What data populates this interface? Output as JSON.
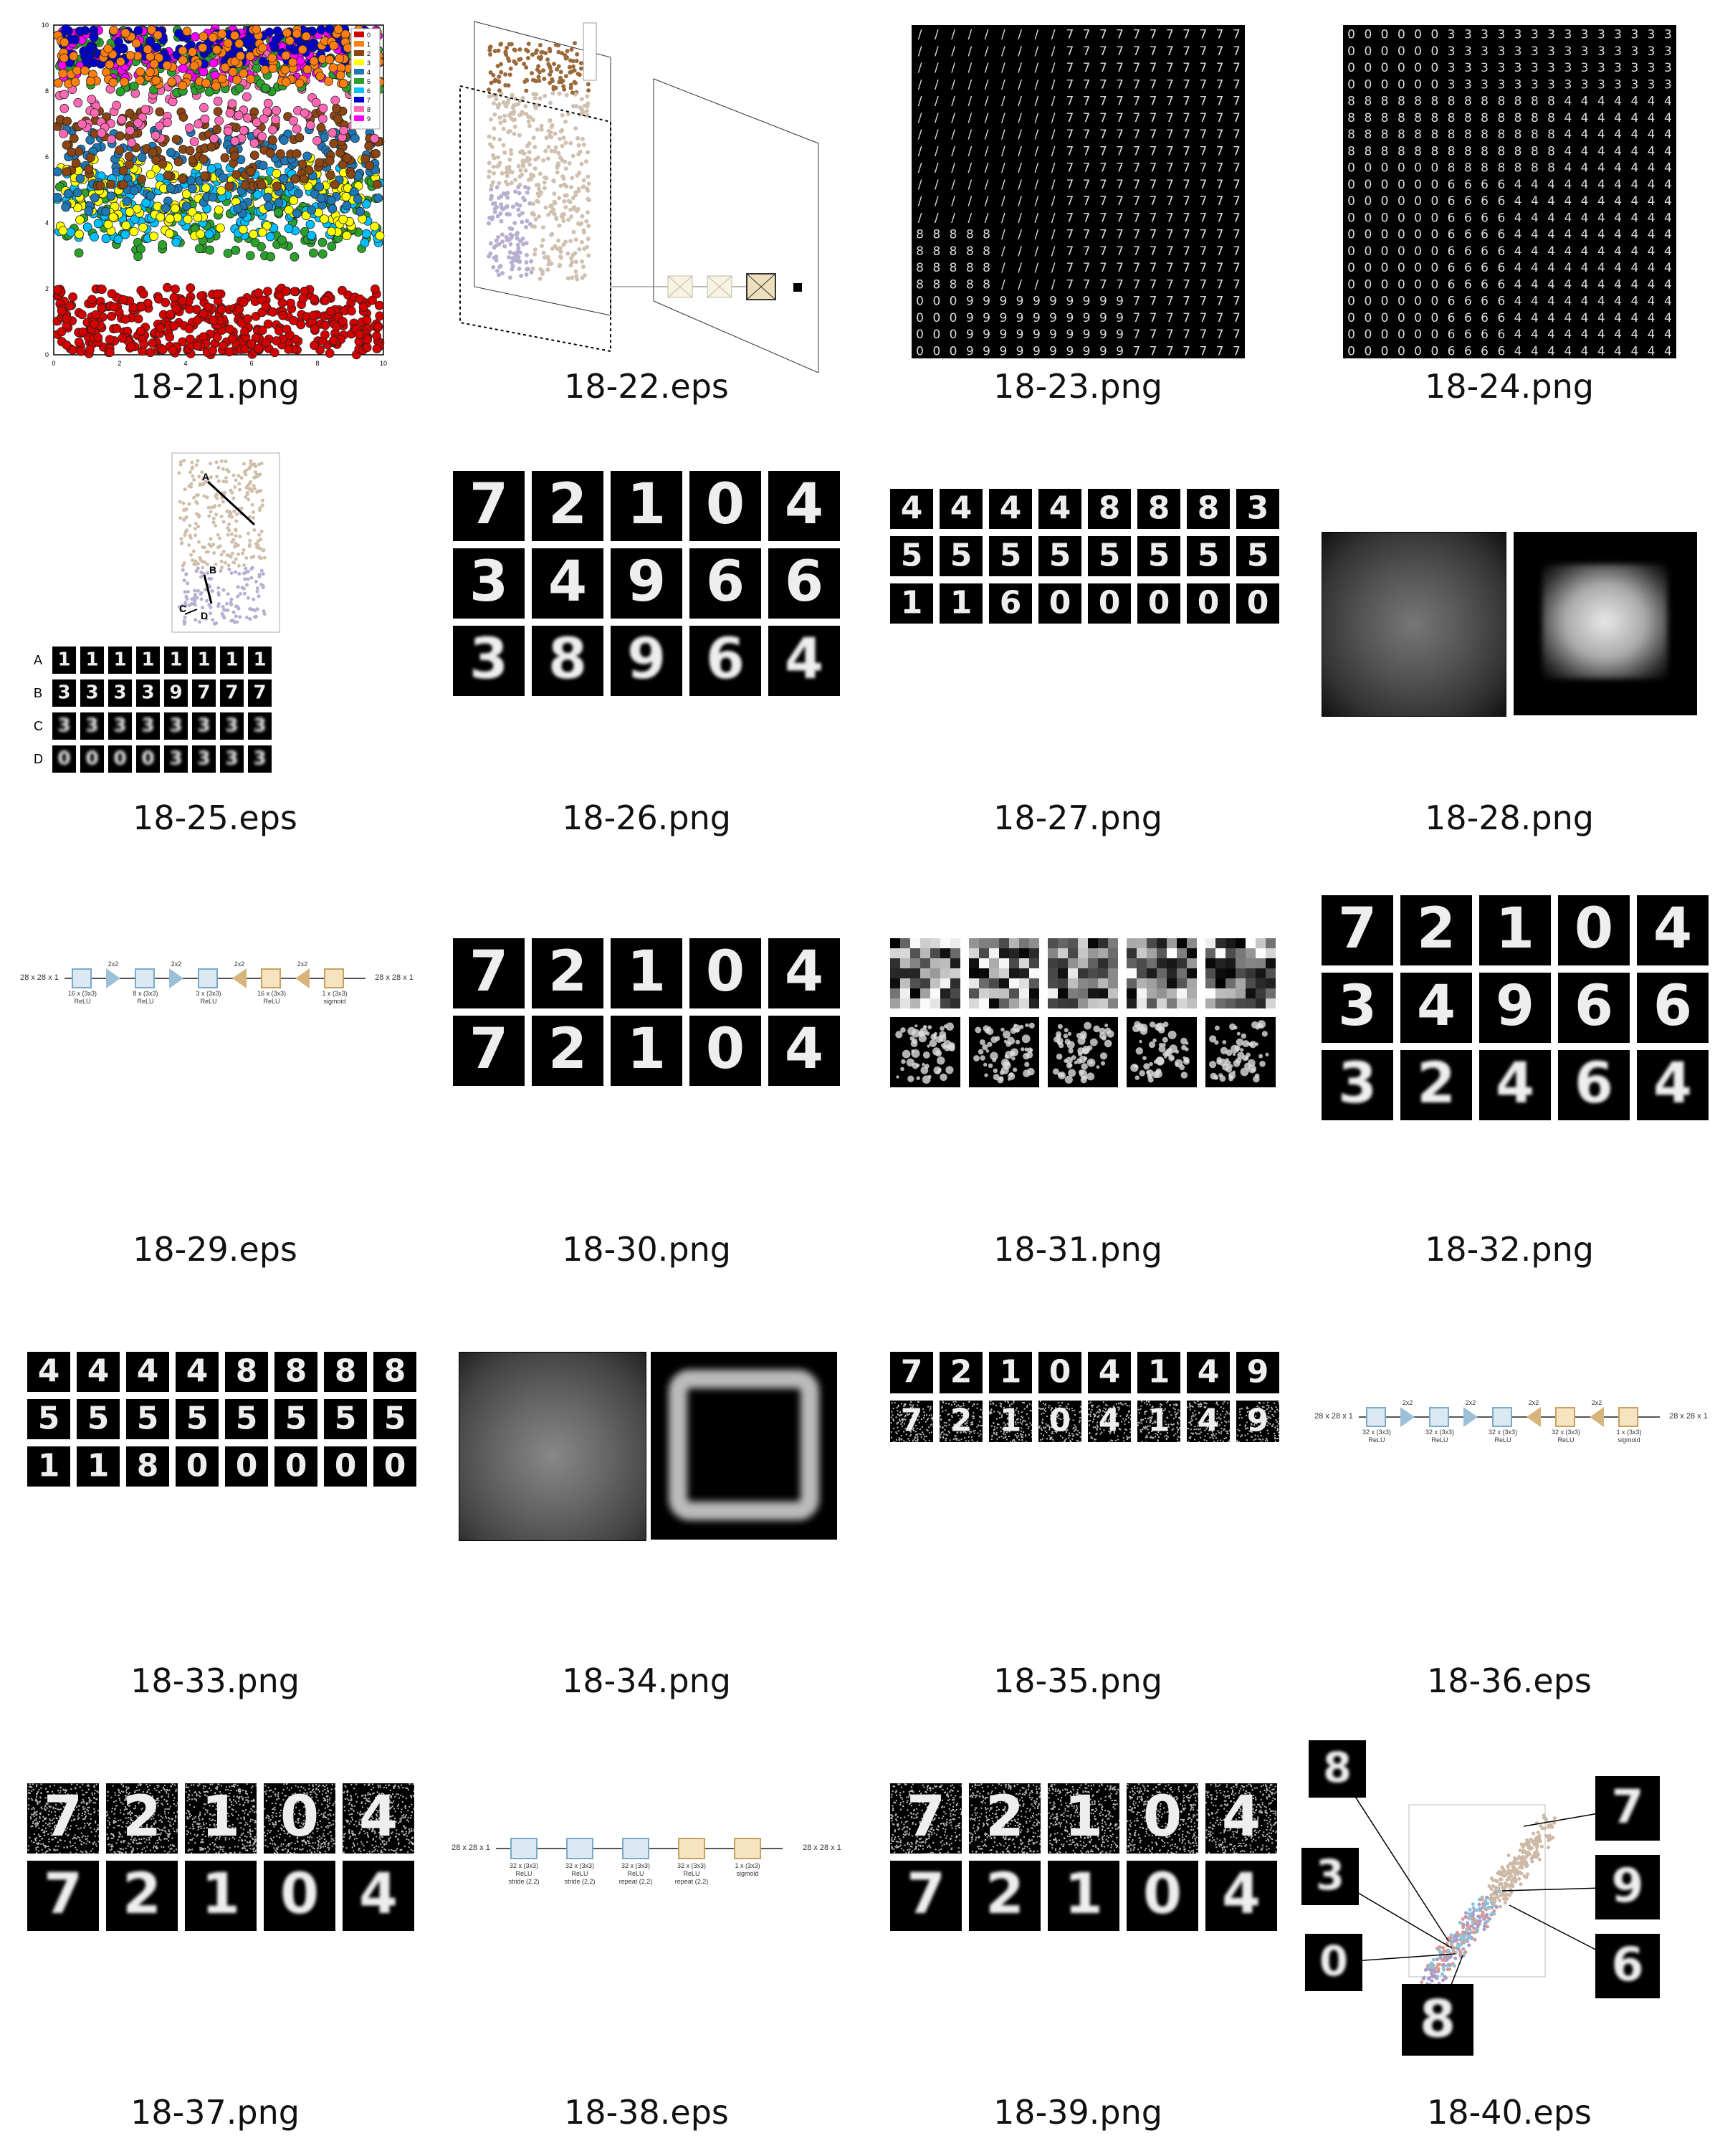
{
  "gallery": {
    "items": [
      {
        "label": "18-21.png"
      },
      {
        "label": "18-22.eps"
      },
      {
        "label": "18-23.png"
      },
      {
        "label": "18-24.png"
      },
      {
        "label": "18-25.eps"
      },
      {
        "label": "18-26.png"
      },
      {
        "label": "18-27.png"
      },
      {
        "label": "18-28.png"
      },
      {
        "label": "18-29.eps"
      },
      {
        "label": "18-30.png"
      },
      {
        "label": "18-31.png"
      },
      {
        "label": "18-32.png"
      },
      {
        "label": "18-33.png"
      },
      {
        "label": "18-34.png"
      },
      {
        "label": "18-35.png"
      },
      {
        "label": "18-36.eps"
      },
      {
        "label": "18-37.png"
      },
      {
        "label": "18-38.eps"
      },
      {
        "label": "18-39.png"
      },
      {
        "label": "18-40.eps"
      }
    ]
  },
  "fig21": {
    "legend": [
      "0",
      "1",
      "2",
      "3",
      "4",
      "5",
      "6",
      "7",
      "8",
      "9"
    ],
    "colors": [
      "#d40000",
      "#ff7f0e",
      "#8b4513",
      "#ffff00",
      "#1f77b4",
      "#2ca02c",
      "#00bfff",
      "#0000cc",
      "#ff69b4",
      "#ff00ff"
    ],
    "x_ticks": [
      "0",
      "2",
      "4",
      "6",
      "8",
      "10"
    ],
    "y_ticks": [
      "0",
      "2",
      "4",
      "6",
      "8",
      "10"
    ]
  },
  "fig25": {
    "arrow_labels": [
      "A",
      "B",
      "C",
      "D"
    ],
    "row_labels": [
      "A",
      "B",
      "C",
      "D"
    ],
    "rows": [
      [
        "1",
        "1",
        "1",
        "1",
        "1",
        "1",
        "1",
        "1"
      ],
      [
        "3",
        "3",
        "3",
        "3",
        "9",
        "7",
        "7",
        "7"
      ],
      [
        "3",
        "3",
        "3",
        "3",
        "3",
        "3",
        "3",
        "3"
      ],
      [
        "0",
        "0",
        "0",
        "0",
        "3",
        "3",
        "3",
        "3"
      ]
    ]
  },
  "fig26": {
    "rows": [
      [
        "7",
        "2",
        "1",
        "0",
        "4"
      ],
      [
        "3",
        "4",
        "9",
        "6",
        "6"
      ],
      [
        "3",
        "8",
        "9",
        "6",
        "4"
      ]
    ]
  },
  "fig27": {
    "rows": [
      [
        "4",
        "4",
        "4",
        "4",
        "8",
        "8",
        "8",
        "3"
      ],
      [
        "5",
        "5",
        "5",
        "5",
        "5",
        "5",
        "5",
        "5"
      ],
      [
        "1",
        "1",
        "6",
        "0",
        "0",
        "0",
        "0",
        "0"
      ]
    ]
  },
  "fig29": {
    "input": "28 x 28 x 1",
    "output": "28 x 28 x 1",
    "captions": [
      "16 x (3x3)\nReLU",
      "2x2",
      "8 x (3x3)\nReLU",
      "2x2",
      "3 x (3x3)\nReLU",
      "2x2",
      "16 x (3x3)\nReLU",
      "2x2",
      "1 x (3x3)\nsigmoid"
    ]
  },
  "fig30": {
    "rows": [
      [
        "7",
        "2",
        "1",
        "0",
        "4"
      ],
      [
        "7",
        "2",
        "1",
        "0",
        "4"
      ]
    ]
  },
  "fig32": {
    "rows": [
      [
        "7",
        "2",
        "1",
        "0",
        "4"
      ],
      [
        "3",
        "4",
        "9",
        "6",
        "6"
      ],
      [
        "3",
        "2",
        "4",
        "6",
        "4"
      ]
    ]
  },
  "fig33": {
    "rows": [
      [
        "4",
        "4",
        "4",
        "4",
        "8",
        "8",
        "8",
        "8"
      ],
      [
        "5",
        "5",
        "5",
        "5",
        "5",
        "5",
        "5",
        "5"
      ],
      [
        "1",
        "1",
        "8",
        "0",
        "0",
        "0",
        "0",
        "0"
      ]
    ]
  },
  "fig35": {
    "rows": [
      [
        "7",
        "2",
        "1",
        "0",
        "4",
        "1",
        "4",
        "9"
      ],
      [
        "7",
        "2",
        "1",
        "0",
        "4",
        "1",
        "4",
        "9"
      ]
    ]
  },
  "fig36": {
    "input": "28 x 28 x 1",
    "output": "28 x 28 x 1",
    "captions": [
      "32 x (3x3)\nReLU",
      "2x2",
      "32 x (3x3)\nReLU",
      "2x2",
      "32 x (3x3)\nReLU",
      "2x2",
      "32 x (3x3)\nReLU",
      "2x2",
      "1 x (3x3)\nsigmoid"
    ]
  },
  "fig37": {
    "rows": [
      [
        "7",
        "2",
        "1",
        "0",
        "4"
      ],
      [
        "7",
        "2",
        "1",
        "0",
        "4"
      ]
    ]
  },
  "fig38": {
    "input": "28 x 28 x 1",
    "output": "28 x 28 x 1",
    "captions": [
      "32 x (3x3)\nReLU\nstride (2,2)",
      "32 x (3x3)\nReLU\nstride (2,2)",
      "32 x (3x3)\nReLU\nrepeat (2,2)",
      "32 x (3x3)\nReLU\nrepeat (2,2)",
      "1 x (3x3)\nsigmoid"
    ]
  },
  "fig39": {
    "rows": [
      [
        "7",
        "2",
        "1",
        "0",
        "4"
      ],
      [
        "7",
        "2",
        "1",
        "0",
        "4"
      ]
    ]
  },
  "fig40": {
    "tiles": [
      "8",
      "7",
      "3",
      "9",
      "0",
      "6",
      "8"
    ]
  }
}
